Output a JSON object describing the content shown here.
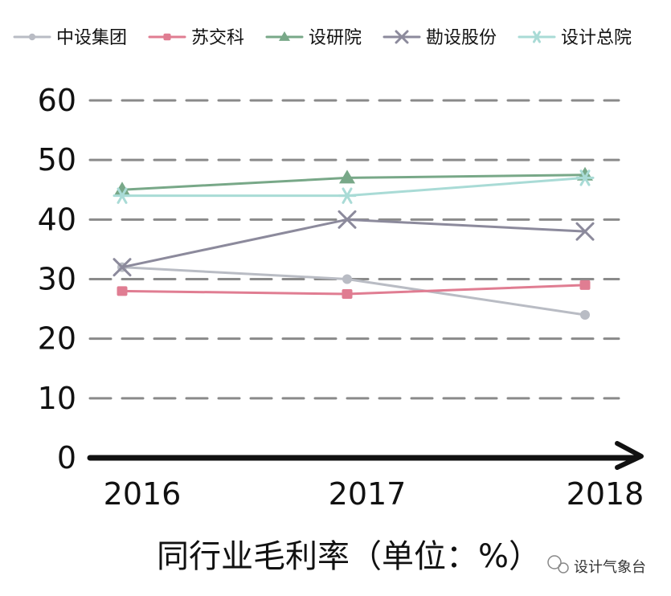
{
  "chart_data": {
    "type": "line",
    "title": "同行业毛利率（单位：%）",
    "x": [
      "2016",
      "2017",
      "2018"
    ],
    "ylim": [
      0,
      60
    ],
    "yticks": [
      "0",
      "10",
      "20",
      "30",
      "40",
      "50",
      "60"
    ],
    "grid": true,
    "legend_position": "top",
    "series": [
      {
        "name": "中设集团",
        "values": [
          32,
          30,
          24
        ],
        "color": "#b9bcc4",
        "marker": "circle"
      },
      {
        "name": "苏交科",
        "values": [
          28,
          27.5,
          29
        ],
        "color": "#e07d92",
        "marker": "square"
      },
      {
        "name": "设研院",
        "values": [
          45,
          47,
          47.5
        ],
        "color": "#78a888",
        "marker": "triangle"
      },
      {
        "name": "勘设股份",
        "values": [
          32,
          40,
          38
        ],
        "color": "#8c8a9c",
        "marker": "x"
      },
      {
        "name": "设计总院",
        "values": [
          44,
          44,
          47
        ],
        "color": "#a9dbd6",
        "marker": "asterisk"
      }
    ]
  },
  "watermark": {
    "text": "设计气象台",
    "icon": "wechat-icon"
  }
}
